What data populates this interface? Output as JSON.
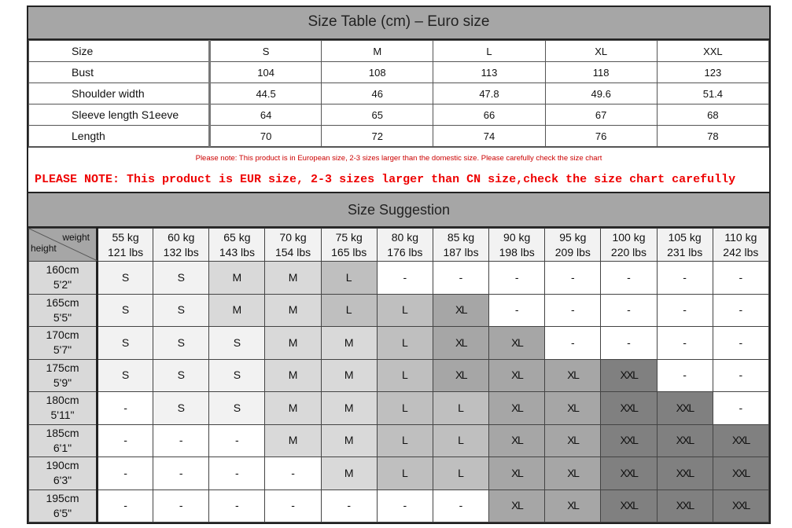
{
  "size_table": {
    "title": "Size Table (cm) – Euro size",
    "rows": [
      {
        "label": "Size",
        "values": [
          "S",
          "M",
          "L",
          "XL",
          "XXL"
        ]
      },
      {
        "label": "Bust",
        "values": [
          "104",
          "108",
          "113",
          "118",
          "123"
        ]
      },
      {
        "label": "Shoulder width",
        "values": [
          "44.5",
          "46",
          "47.8",
          "49.6",
          "51.4"
        ]
      },
      {
        "label": "Sleeve length S1eeve",
        "values": [
          "64",
          "65",
          "66",
          "67",
          "68"
        ]
      },
      {
        "label": "Length",
        "values": [
          "70",
          "72",
          "74",
          "76",
          "78"
        ]
      }
    ],
    "note_small": "Please note: This product is in European size, 2-3 sizes larger than the domestic size. Please carefully check the size chart",
    "note_large": "PLEASE NOTE: This product is EUR size, 2-3 sizes larger than CN size,check the size chart carefully"
  },
  "suggestion": {
    "title": "Size Suggestion",
    "corner_weight": "weight",
    "corner_height": "height",
    "weights": [
      {
        "kg": "55 kg",
        "lbs": "121 lbs"
      },
      {
        "kg": "60 kg",
        "lbs": "132 lbs"
      },
      {
        "kg": "65 kg",
        "lbs": "143 lbs"
      },
      {
        "kg": "70 kg",
        "lbs": "154 lbs"
      },
      {
        "kg": "75 kg",
        "lbs": "165 lbs"
      },
      {
        "kg": "80 kg",
        "lbs": "176 lbs"
      },
      {
        "kg": "85 kg",
        "lbs": "187 lbs"
      },
      {
        "kg": "90 kg",
        "lbs": "198 lbs"
      },
      {
        "kg": "95 kg",
        "lbs": "209 lbs"
      },
      {
        "kg": "100 kg",
        "lbs": "220 lbs"
      },
      {
        "kg": "105 kg",
        "lbs": "231 lbs"
      },
      {
        "kg": "110 kg",
        "lbs": "242 lbs"
      }
    ],
    "rows": [
      {
        "cm": "160cm",
        "ft": "5'2\"",
        "sizes": [
          "S",
          "S",
          "M",
          "M",
          "L",
          "-",
          "-",
          "-",
          "-",
          "-",
          "-",
          "-"
        ]
      },
      {
        "cm": "165cm",
        "ft": "5'5\"",
        "sizes": [
          "S",
          "S",
          "M",
          "M",
          "L",
          "L",
          "XL",
          "-",
          "-",
          "-",
          "-",
          "-"
        ]
      },
      {
        "cm": "170cm",
        "ft": "5'7\"",
        "sizes": [
          "S",
          "S",
          "S",
          "M",
          "M",
          "L",
          "XL",
          "XL",
          "-",
          "-",
          "-",
          "-"
        ]
      },
      {
        "cm": "175cm",
        "ft": "5'9\"",
        "sizes": [
          "S",
          "S",
          "S",
          "M",
          "M",
          "L",
          "XL",
          "XL",
          "XL",
          "XXL",
          "-",
          "-"
        ]
      },
      {
        "cm": "180cm",
        "ft": "5'11\"",
        "sizes": [
          "-",
          "S",
          "S",
          "M",
          "M",
          "L",
          "L",
          "XL",
          "XL",
          "XXL",
          "XXL",
          "-"
        ]
      },
      {
        "cm": "185cm",
        "ft": "6'1\"",
        "sizes": [
          "-",
          "-",
          "-",
          "M",
          "M",
          "L",
          "L",
          "XL",
          "XL",
          "XXL",
          "XXL",
          "XXL"
        ]
      },
      {
        "cm": "190cm",
        "ft": "6'3\"",
        "sizes": [
          "-",
          "-",
          "-",
          "-",
          "M",
          "L",
          "L",
          "XL",
          "XL",
          "XXL",
          "XXL",
          "XXL"
        ]
      },
      {
        "cm": "195cm",
        "ft": "6'5\"",
        "sizes": [
          "-",
          "-",
          "-",
          "-",
          "-",
          "-",
          "-",
          "XL",
          "XL",
          "XXL",
          "XXL",
          "XXL"
        ]
      }
    ],
    "size_colors": {
      "S": "#f2f2f2",
      "M": "#d9d9d9",
      "L": "#bfbfbf",
      "XL": "#a6a6a6",
      "XXL": "#808080",
      "-": "#ffffff"
    }
  }
}
